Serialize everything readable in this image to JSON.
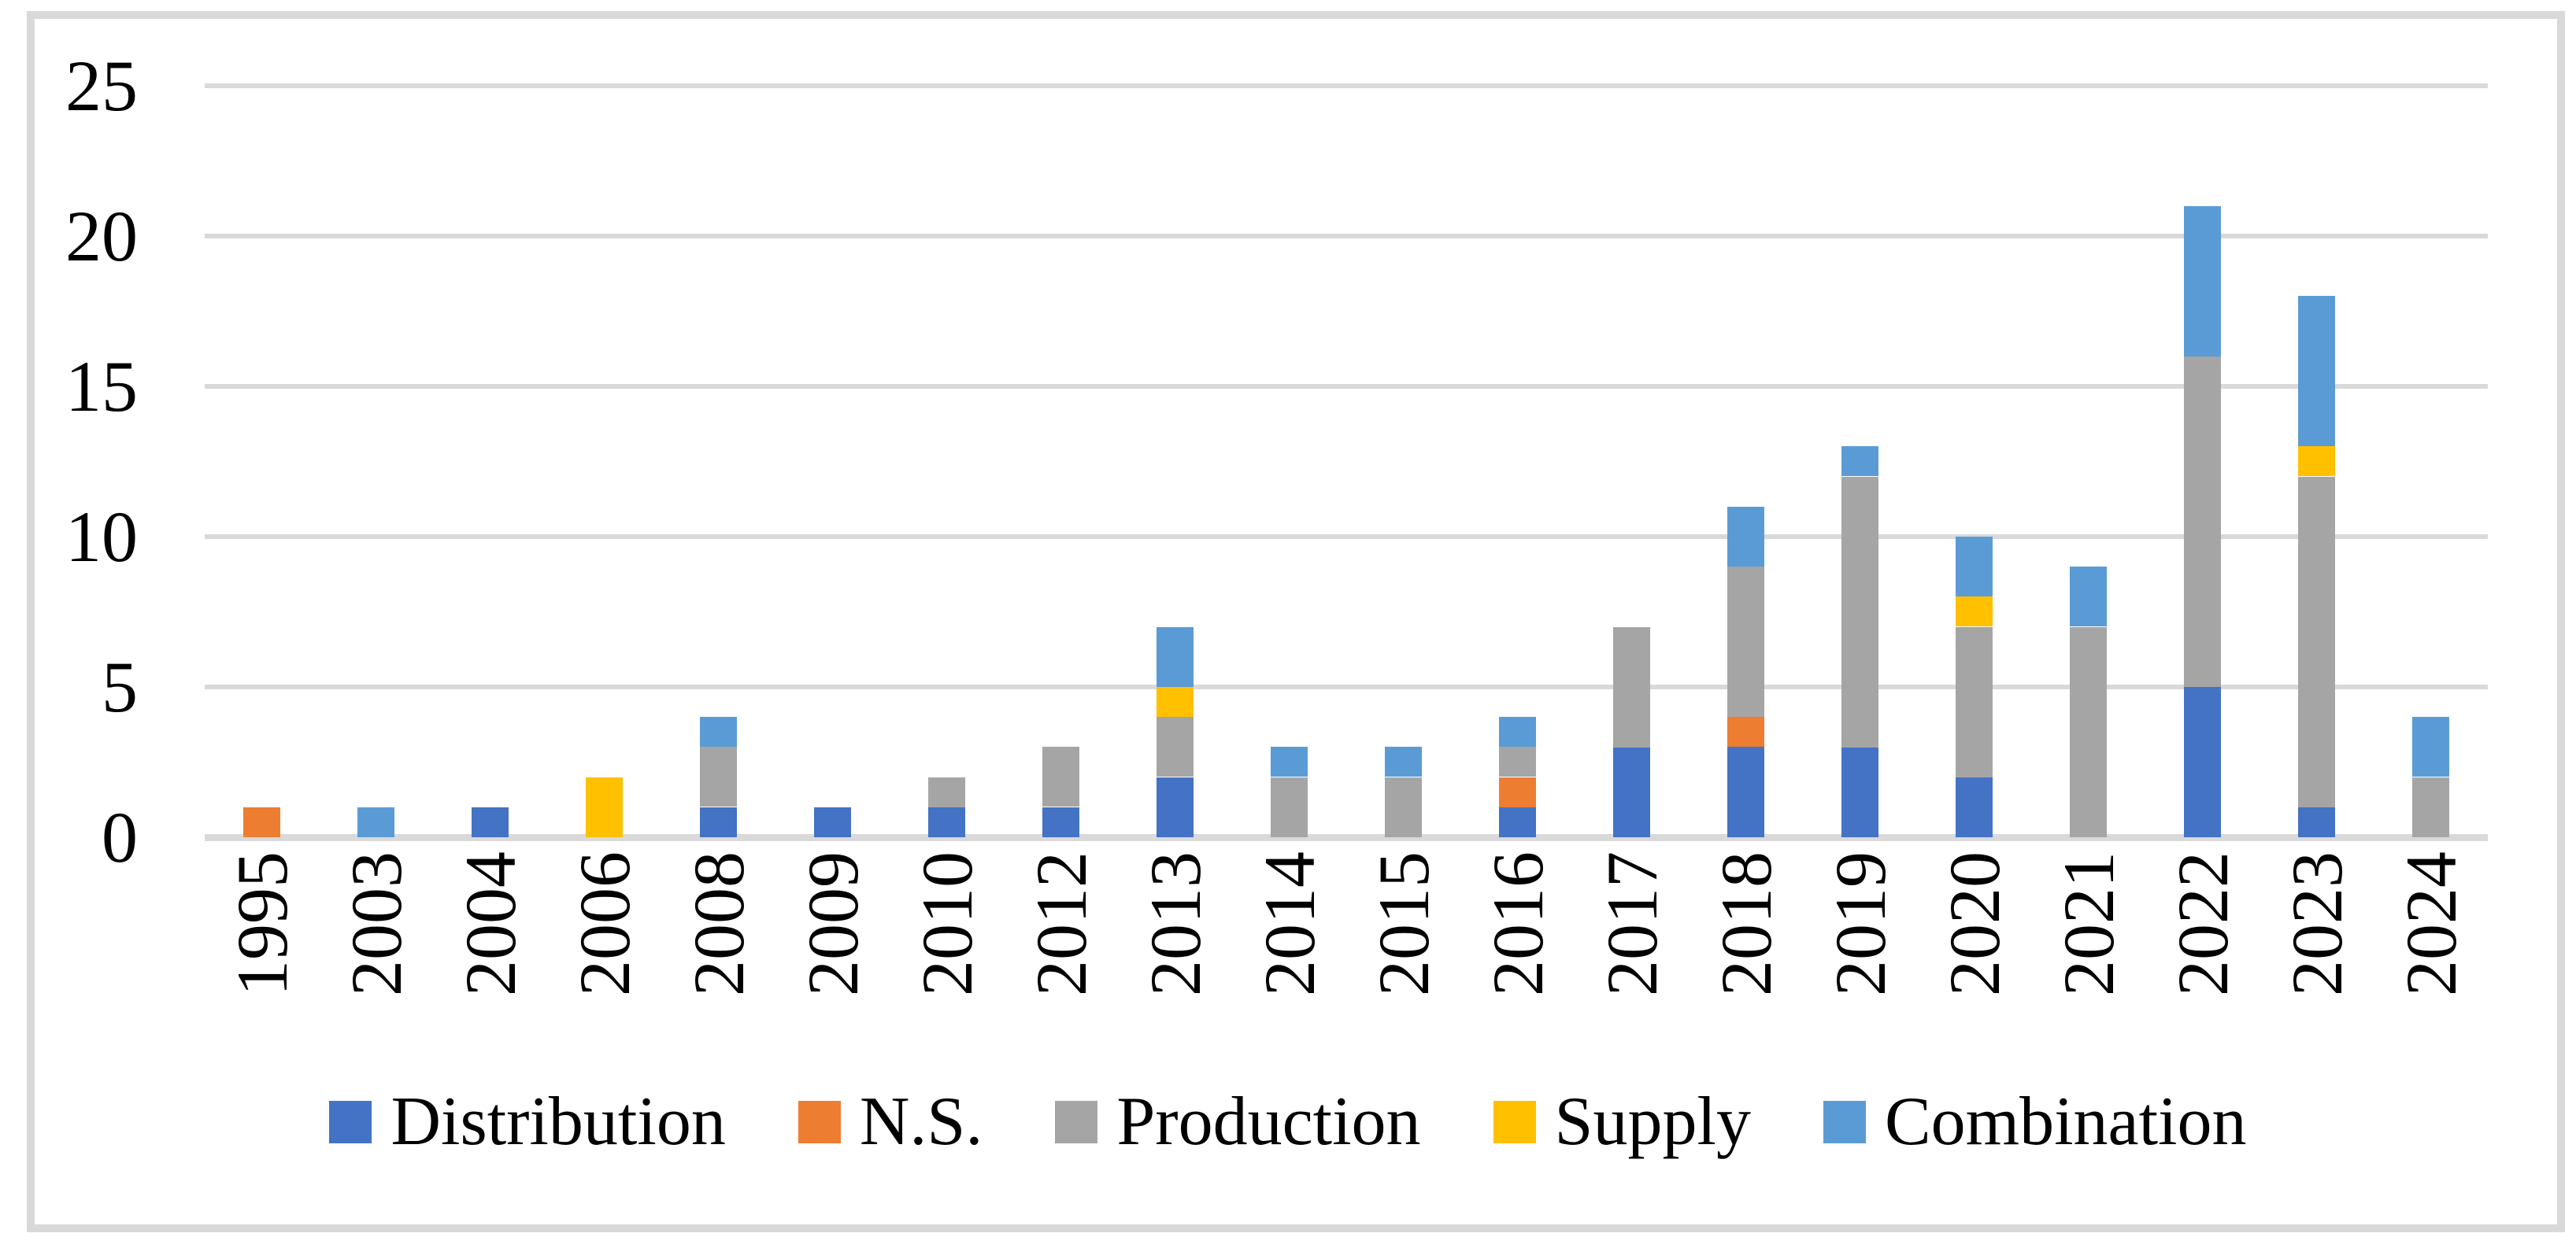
{
  "chart_data": {
    "type": "bar",
    "stacked": true,
    "title": "",
    "xlabel": "",
    "ylabel": "",
    "ylim": [
      0,
      25
    ],
    "y_ticks": [
      0,
      5,
      10,
      15,
      20,
      25
    ],
    "grid": "horizontal",
    "legend_position": "bottom",
    "categories": [
      "1995",
      "2003",
      "2004",
      "2006",
      "2008",
      "2009",
      "2010",
      "2012",
      "2013",
      "2014",
      "2015",
      "2016",
      "2017",
      "2018",
      "2019",
      "2020",
      "2021",
      "2022",
      "2023",
      "2024"
    ],
    "series": [
      {
        "name": "Distribution",
        "color": "#4472C4",
        "values": [
          0,
          0,
          1,
          0,
          1,
          1,
          1,
          1,
          2,
          0,
          0,
          1,
          3,
          3,
          3,
          2,
          0,
          5,
          1,
          0
        ]
      },
      {
        "name": "N.S.",
        "color": "#ED7D31",
        "values": [
          1,
          0,
          0,
          0,
          0,
          0,
          0,
          0,
          0,
          0,
          0,
          1,
          0,
          1,
          0,
          0,
          0,
          0,
          0,
          0
        ]
      },
      {
        "name": "Production",
        "color": "#A5A5A5",
        "values": [
          0,
          0,
          0,
          0,
          2,
          0,
          1,
          2,
          2,
          2,
          2,
          1,
          4,
          5,
          9,
          5,
          7,
          11,
          11,
          2
        ]
      },
      {
        "name": "Supply",
        "color": "#FFC000",
        "values": [
          0,
          0,
          0,
          2,
          0,
          0,
          0,
          0,
          1,
          0,
          0,
          0,
          0,
          0,
          0,
          1,
          0,
          0,
          1,
          0
        ]
      },
      {
        "name": "Combination",
        "color": "#5B9BD5",
        "values": [
          0,
          1,
          0,
          0,
          1,
          0,
          0,
          0,
          2,
          1,
          1,
          1,
          0,
          2,
          1,
          2,
          2,
          5,
          5,
          2
        ]
      }
    ],
    "style": {
      "gridline_color": "#D9D9D9",
      "axis_line_color": "#D9D9D9",
      "frame_color": "#D9D9D9",
      "text_color": "#000000",
      "background": "#FFFFFF"
    }
  }
}
